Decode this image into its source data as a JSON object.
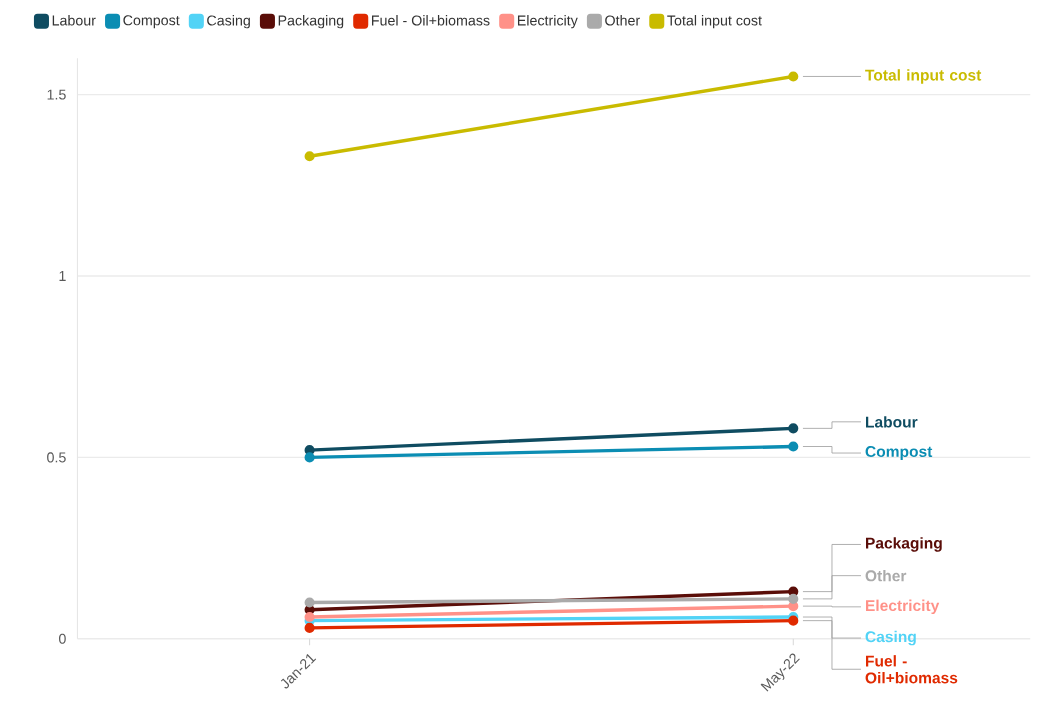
{
  "chart_data": {
    "type": "line",
    "categories": [
      "Jan-21",
      "May-22"
    ],
    "series": [
      {
        "name": "Labour",
        "color": "#0f4c61",
        "values": [
          0.52,
          0.58
        ]
      },
      {
        "name": "Compost",
        "color": "#0b8db3",
        "values": [
          0.5,
          0.53
        ]
      },
      {
        "name": "Casing",
        "color": "#52d3f6",
        "values": [
          0.05,
          0.06
        ]
      },
      {
        "name": "Packaging",
        "color": "#5a0d08",
        "values": [
          0.08,
          0.13
        ]
      },
      {
        "name": "Fuel - Oil+biomass",
        "color": "#e02a00",
        "values": [
          0.03,
          0.05
        ]
      },
      {
        "name": "Electricity",
        "color": "#ff9188",
        "values": [
          0.06,
          0.09
        ]
      },
      {
        "name": "Other",
        "color": "#aaaaaa",
        "values": [
          0.1,
          0.11
        ]
      },
      {
        "name": "Total input cost",
        "color": "#c9bb00",
        "values": [
          1.33,
          1.55
        ]
      }
    ],
    "ylim": [
      0,
      1.6
    ],
    "yticks": [
      0,
      0.5,
      1,
      1.5
    ],
    "grid": "y",
    "legend": "top",
    "marker": "circle",
    "line_style": "solid"
  }
}
